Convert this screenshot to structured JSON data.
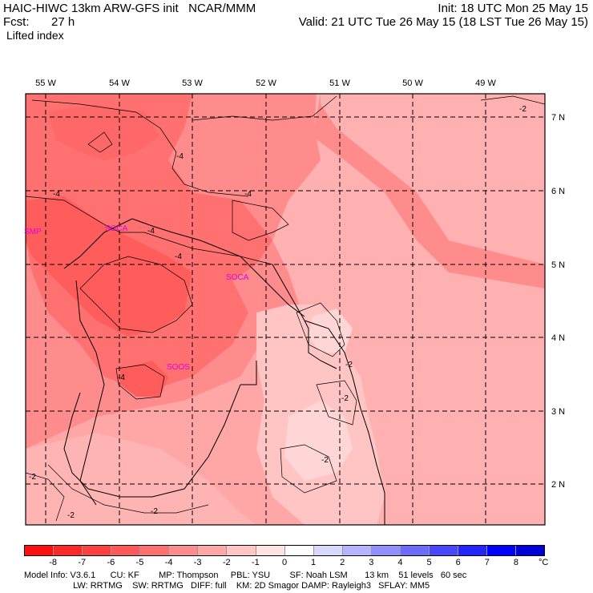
{
  "header": {
    "title_left": "HAIC-HIWC 13km ARW-GFS init   NCAR/MMM",
    "fcst_label": "Fcst:",
    "fcst_value": "27 h",
    "field_name": "Lifted index",
    "init": "Init: 18 UTC Mon 25 May 15",
    "valid": "Valid: 21 UTC Tue 26 May 15 (18 LST Tue 26 May 15)"
  },
  "map": {
    "lon_labels": [
      "55 W",
      "54 W",
      "53 W",
      "52 W",
      "51 W",
      "50 W",
      "49 W"
    ],
    "lat_labels": [
      "7 N",
      "6 N",
      "5 N",
      "4 N",
      "3 N",
      "2 N"
    ],
    "station_labels": [
      "SMP",
      "SOCA",
      "SOCA",
      "SOOS"
    ],
    "contour_labels": [
      "-4",
      "-4",
      "-4",
      "-4",
      "-4",
      "-4",
      "-2",
      "-2",
      "-2",
      "-2",
      "-2",
      "-2",
      "-2"
    ]
  },
  "colorbar": {
    "ticks": [
      "-8",
      "-7",
      "-6",
      "-5",
      "-4",
      "-3",
      "-2",
      "-1",
      "0",
      "1",
      "2",
      "3",
      "4",
      "5",
      "6",
      "7",
      "8"
    ],
    "unit": "°C",
    "colors": [
      "#ff1010",
      "#ff2828",
      "#ff4040",
      "#ff5858",
      "#ff7070",
      "#ff8c8c",
      "#ffa6a6",
      "#ffc4c4",
      "#ffe2e2",
      "#ffffff",
      "#d8d8ff",
      "#b4b4ff",
      "#9090ff",
      "#6c6cff",
      "#4848ff",
      "#2424ff",
      "#0000ff",
      "#0000dd"
    ]
  },
  "footer": {
    "line1": "Model Info: V3.6.1      CU: KF        MP: Thompson     PBL: YSU        SF: Noah LSM       13 km    51 levels   60 sec",
    "line2": "                    LW: RRTMG    SW: RRTMG   DIFF: full    KM: 2D Smagor DAMP: Rayleigh3   SFLAY: MM5"
  }
}
